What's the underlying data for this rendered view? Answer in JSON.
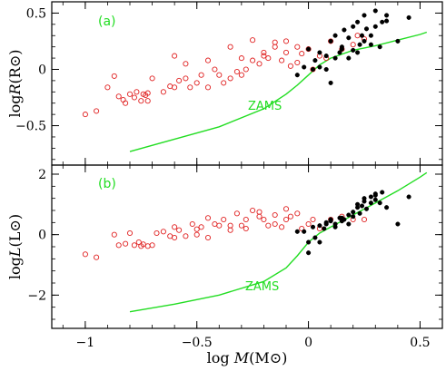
{
  "colors": {
    "zams": "#22dd22",
    "open_marker": "#e02020",
    "filled_marker": "#000000",
    "frame": "#000000"
  },
  "chart_data": [
    {
      "type": "scatter",
      "panel_label": "(a)",
      "ylabel": "logR(R⊙)",
      "ylabel_main": "log",
      "ylabel_var": "R",
      "ylabel_unit": "(R⊙)",
      "xlim": [
        -1.15,
        0.6
      ],
      "ylim": [
        -0.85,
        0.6
      ],
      "yticks": [
        0.5,
        0,
        -0.5
      ],
      "ytick_labels": [
        "0.5",
        "0",
        "−0.5"
      ],
      "annotation": "ZAMS",
      "zams": {
        "x": [
          -0.8,
          -0.6,
          -0.4,
          -0.2,
          -0.1,
          -0.05,
          0.0,
          0.05,
          0.1,
          0.2,
          0.3,
          0.4,
          0.5,
          0.53
        ],
        "y": [
          -0.73,
          -0.62,
          -0.51,
          -0.35,
          -0.22,
          -0.14,
          -0.05,
          0.04,
          0.1,
          0.17,
          0.21,
          0.26,
          0.31,
          0.33
        ]
      },
      "series": [
        {
          "marker": "open-circle",
          "x": [
            -1.0,
            -0.95,
            -0.9,
            -0.87,
            -0.85,
            -0.83,
            -0.82,
            -0.8,
            -0.78,
            -0.77,
            -0.75,
            -0.74,
            -0.73,
            -0.72,
            -0.72,
            -0.7,
            -0.65,
            -0.62,
            -0.6,
            -0.58,
            -0.55,
            -0.53,
            -0.5,
            -0.48,
            -0.45,
            -0.42,
            -0.4,
            -0.38,
            -0.35,
            -0.32,
            -0.3,
            -0.28,
            -0.25,
            -0.22,
            -0.2,
            -0.18,
            -0.15,
            -0.12,
            -0.1,
            -0.08,
            -0.05,
            -0.03,
            0.0,
            0.02,
            0.05,
            0.08,
            0.1,
            0.15,
            0.2,
            0.22,
            0.25,
            -0.6,
            -0.55,
            -0.45,
            -0.35,
            -0.3,
            -0.25,
            -0.2,
            -0.15,
            -0.1,
            -0.05
          ],
          "y": [
            -0.4,
            -0.37,
            -0.16,
            -0.06,
            -0.24,
            -0.27,
            -0.3,
            -0.22,
            -0.25,
            -0.2,
            -0.28,
            -0.22,
            -0.23,
            -0.28,
            -0.21,
            -0.08,
            -0.2,
            -0.15,
            -0.16,
            -0.1,
            -0.08,
            -0.16,
            -0.12,
            -0.05,
            -0.16,
            0.0,
            -0.05,
            -0.12,
            -0.08,
            -0.02,
            0.1,
            0.0,
            0.26,
            0.05,
            0.15,
            0.1,
            0.2,
            0.08,
            0.15,
            0.03,
            0.06,
            0.14,
            0.18,
            0.0,
            0.12,
            0.1,
            0.25,
            0.18,
            0.22,
            0.3,
            0.27,
            0.12,
            0.05,
            0.08,
            0.2,
            -0.05,
            0.08,
            0.12,
            0.24,
            0.25,
            0.2
          ]
        },
        {
          "marker": "filled-circle",
          "x": [
            -0.05,
            -0.02,
            0.0,
            0.02,
            0.03,
            0.05,
            0.08,
            0.1,
            0.1,
            0.12,
            0.12,
            0.14,
            0.15,
            0.16,
            0.18,
            0.2,
            0.2,
            0.22,
            0.23,
            0.24,
            0.25,
            0.25,
            0.26,
            0.28,
            0.3,
            0.3,
            0.32,
            0.33,
            0.35,
            0.35,
            0.4,
            0.45,
            0.05,
            0.08,
            0.15,
            0.18,
            0.22,
            0.28
          ],
          "y": [
            -0.05,
            0.02,
            0.18,
            0.0,
            0.08,
            0.15,
            0.0,
            -0.12,
            0.25,
            0.1,
            0.3,
            0.15,
            0.2,
            0.35,
            0.1,
            0.38,
            0.17,
            0.42,
            0.22,
            0.3,
            0.25,
            0.48,
            0.36,
            0.22,
            0.52,
            0.38,
            0.2,
            0.42,
            0.48,
            0.43,
            0.25,
            0.46,
            0.02,
            0.12,
            0.18,
            0.28,
            0.15,
            0.3
          ]
        }
      ]
    },
    {
      "type": "scatter",
      "panel_label": "(b)",
      "ylabel": "logL(L⊙)",
      "ylabel_main": "log",
      "ylabel_var": "L",
      "ylabel_unit": "(L⊙)",
      "xlabel": "log M(M⊙)",
      "xlabel_main": "log ",
      "xlabel_var": "M",
      "xlabel_unit": "(M⊙)",
      "xlim": [
        -1.15,
        0.6
      ],
      "ylim": [
        -3.1,
        2.3
      ],
      "xticks": [
        -1,
        -0.5,
        0,
        0.5
      ],
      "xtick_labels": [
        "−1",
        "−0.5",
        "0",
        "0.5"
      ],
      "yticks": [
        2,
        0,
        -2
      ],
      "ytick_labels": [
        "2",
        "0",
        "−2"
      ],
      "annotation": "ZAMS",
      "zams": {
        "x": [
          -0.8,
          -0.6,
          -0.4,
          -0.2,
          -0.1,
          -0.05,
          0.0,
          0.05,
          0.1,
          0.2,
          0.3,
          0.4,
          0.5,
          0.53
        ],
        "y": [
          -2.55,
          -2.3,
          -2.0,
          -1.55,
          -1.1,
          -0.7,
          -0.25,
          0.05,
          0.25,
          0.65,
          1.05,
          1.45,
          1.9,
          2.05
        ]
      },
      "series": [
        {
          "marker": "open-circle",
          "x": [
            -1.0,
            -0.95,
            -0.87,
            -0.85,
            -0.82,
            -0.8,
            -0.78,
            -0.76,
            -0.75,
            -0.74,
            -0.72,
            -0.7,
            -0.68,
            -0.65,
            -0.62,
            -0.6,
            -0.58,
            -0.55,
            -0.52,
            -0.5,
            -0.48,
            -0.45,
            -0.42,
            -0.4,
            -0.38,
            -0.35,
            -0.32,
            -0.3,
            -0.28,
            -0.25,
            -0.22,
            -0.2,
            -0.18,
            -0.15,
            -0.12,
            -0.1,
            -0.08,
            -0.05,
            -0.03,
            0.0,
            0.02,
            0.05,
            0.1,
            0.15,
            0.2,
            0.25,
            -0.6,
            -0.5,
            -0.45,
            -0.35,
            -0.28,
            -0.22,
            -0.15,
            -0.1
          ],
          "y": [
            -0.65,
            -0.75,
            0.0,
            -0.35,
            -0.3,
            0.05,
            -0.35,
            -0.25,
            -0.38,
            -0.32,
            -0.38,
            -0.35,
            0.05,
            0.1,
            -0.05,
            -0.1,
            0.15,
            -0.05,
            0.35,
            0.18,
            0.25,
            -0.1,
            0.35,
            0.3,
            0.5,
            0.15,
            0.7,
            0.3,
            0.5,
            0.8,
            0.6,
            0.5,
            0.3,
            0.65,
            0.25,
            0.5,
            0.6,
            0.7,
            0.2,
            0.35,
            0.5,
            0.2,
            0.5,
            0.6,
            0.5,
            0.5,
            0.25,
            0.0,
            0.55,
            0.3,
            0.2,
            0.75,
            0.35,
            0.85
          ]
        },
        {
          "marker": "filled-circle",
          "x": [
            -0.05,
            -0.02,
            0.0,
            0.02,
            0.03,
            0.05,
            0.08,
            0.1,
            0.1,
            0.12,
            0.14,
            0.15,
            0.16,
            0.18,
            0.2,
            0.2,
            0.22,
            0.23,
            0.24,
            0.25,
            0.25,
            0.26,
            0.28,
            0.3,
            0.3,
            0.32,
            0.33,
            0.35,
            0.4,
            0.45,
            0.05,
            0.08,
            0.15,
            0.18,
            0.22,
            0.28,
            0.12,
            0.0,
            0.07,
            0.3
          ],
          "y": [
            0.1,
            0.1,
            -0.6,
            0.25,
            -0.1,
            -0.25,
            0.35,
            0.5,
            0.45,
            0.25,
            0.55,
            0.45,
            0.5,
            0.35,
            0.6,
            0.75,
            0.9,
            0.7,
            0.95,
            1.1,
            1.2,
            0.85,
            1.05,
            1.35,
            1.15,
            1.05,
            1.4,
            0.9,
            0.35,
            1.25,
            0.3,
            0.4,
            0.55,
            0.65,
            1.0,
            1.25,
            0.35,
            -0.25,
            0.2,
            1.3
          ]
        }
      ]
    }
  ]
}
